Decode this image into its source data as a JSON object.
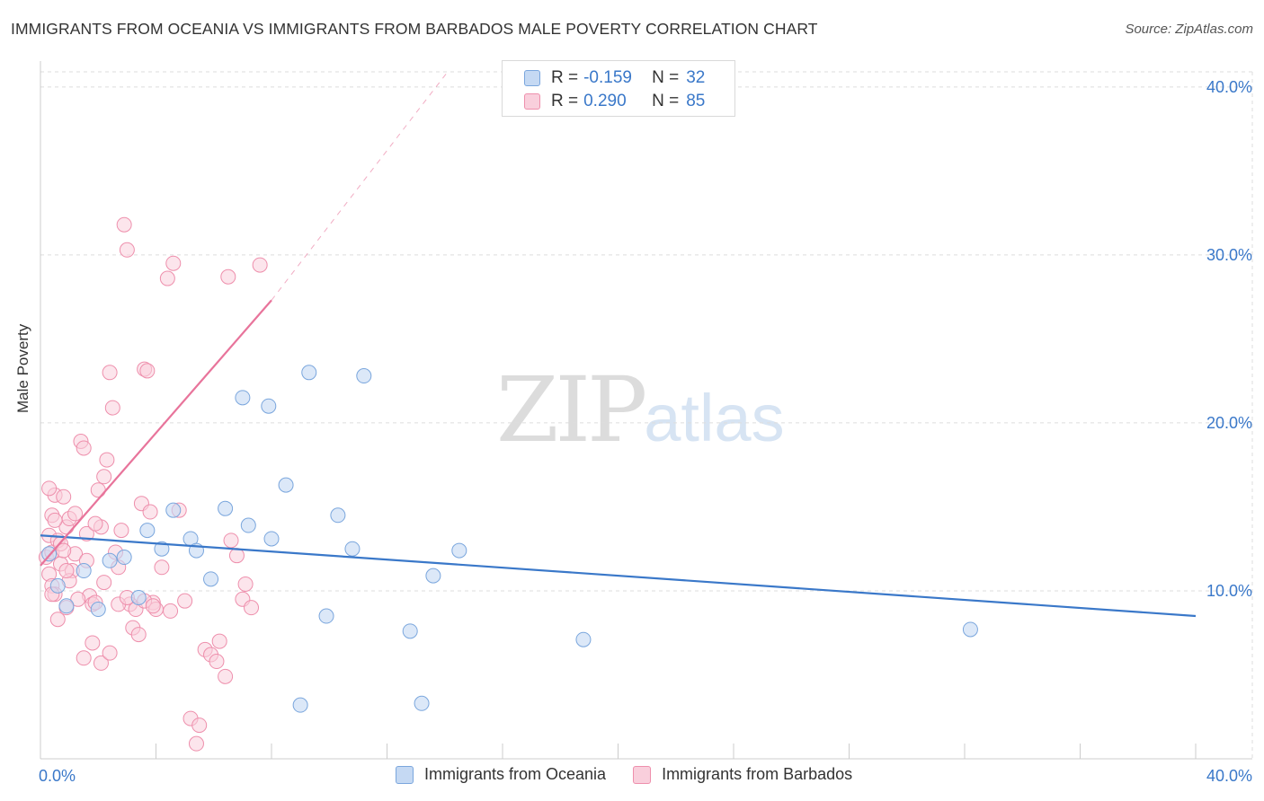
{
  "title": "IMMIGRANTS FROM OCEANIA VS IMMIGRANTS FROM BARBADOS MALE POVERTY CORRELATION CHART",
  "source": "Source: ZipAtlas.com",
  "watermark": {
    "part1": "ZIP",
    "part2": "atlas"
  },
  "legend": {
    "oceania": {
      "r_label": "R =",
      "r_value": "-0.159",
      "n_label": "N =",
      "n_value": "32"
    },
    "barbados": {
      "r_label": "R =",
      "r_value": "0.290",
      "n_label": "N =",
      "n_value": "85"
    }
  },
  "bottom_legend": {
    "oceania": "Immigrants from Oceania",
    "barbados": "Immigrants from Barbados"
  },
  "colors": {
    "oceania_fill": "#c5d9f3",
    "oceania_stroke": "#7aa6dd",
    "oceania_line": "#3a78c9",
    "barbados_fill": "#f9cfdc",
    "barbados_stroke": "#ee8fac",
    "barbados_line": "#e8749b",
    "axis_text": "#3a78c9",
    "grid": "#dddddd"
  },
  "chart_data": {
    "type": "scatter",
    "title": "IMMIGRANTS FROM OCEANIA VS IMMIGRANTS FROM BARBADOS MALE POVERTY CORRELATION CHART",
    "xlabel": "",
    "ylabel": "Male Poverty",
    "xlim": [
      0,
      40
    ],
    "ylim": [
      0,
      40.9
    ],
    "x_tick_labels": [
      "0.0%",
      "40.0%"
    ],
    "y_ticks": [
      10,
      20,
      30,
      40
    ],
    "y_tick_labels": [
      "10.0%",
      "20.0%",
      "30.0%",
      "40.0%"
    ],
    "series": [
      {
        "name": "Immigrants from Oceania",
        "color": "#7aa6dd",
        "points": [
          [
            0.3,
            12.2
          ],
          [
            0.6,
            10.3
          ],
          [
            1.5,
            11.2
          ],
          [
            2.0,
            8.9
          ],
          [
            2.4,
            11.8
          ],
          [
            2.9,
            12.0
          ],
          [
            3.4,
            9.6
          ],
          [
            3.7,
            13.6
          ],
          [
            4.2,
            12.5
          ],
          [
            4.6,
            14.8
          ],
          [
            5.2,
            13.1
          ],
          [
            5.4,
            12.4
          ],
          [
            5.9,
            10.7
          ],
          [
            6.4,
            14.9
          ],
          [
            7.0,
            21.5
          ],
          [
            7.2,
            13.9
          ],
          [
            7.9,
            21.0
          ],
          [
            8.0,
            13.1
          ],
          [
            8.5,
            16.3
          ],
          [
            9.0,
            3.2
          ],
          [
            9.3,
            23.0
          ],
          [
            9.9,
            8.5
          ],
          [
            10.3,
            14.5
          ],
          [
            10.8,
            12.5
          ],
          [
            11.2,
            22.8
          ],
          [
            12.8,
            7.6
          ],
          [
            13.2,
            3.3
          ],
          [
            13.6,
            10.9
          ],
          [
            14.5,
            12.4
          ],
          [
            18.8,
            7.1
          ],
          [
            32.2,
            7.7
          ],
          [
            0.9,
            9.1
          ]
        ],
        "trend": {
          "x": [
            0,
            40
          ],
          "y": [
            13.3,
            8.5
          ]
        }
      },
      {
        "name": "Immigrants from Barbados",
        "color": "#ee8fac",
        "points": [
          [
            0.2,
            12.0
          ],
          [
            0.3,
            13.3
          ],
          [
            0.3,
            11.0
          ],
          [
            0.4,
            12.3
          ],
          [
            0.4,
            10.3
          ],
          [
            0.4,
            14.5
          ],
          [
            0.5,
            15.7
          ],
          [
            0.5,
            9.8
          ],
          [
            0.6,
            13.0
          ],
          [
            0.7,
            11.6
          ],
          [
            0.7,
            12.8
          ],
          [
            0.8,
            15.6
          ],
          [
            0.9,
            13.8
          ],
          [
            0.9,
            9.0
          ],
          [
            1.0,
            14.3
          ],
          [
            1.1,
            11.2
          ],
          [
            1.2,
            12.2
          ],
          [
            0.6,
            8.3
          ],
          [
            1.4,
            18.9
          ],
          [
            1.5,
            18.5
          ],
          [
            1.6,
            13.4
          ],
          [
            1.7,
            9.7
          ],
          [
            1.8,
            9.2
          ],
          [
            1.9,
            9.3
          ],
          [
            2.0,
            16.0
          ],
          [
            2.1,
            13.8
          ],
          [
            2.2,
            16.8
          ],
          [
            2.3,
            17.8
          ],
          [
            2.4,
            23.0
          ],
          [
            2.5,
            20.9
          ],
          [
            2.6,
            12.3
          ],
          [
            2.7,
            11.4
          ],
          [
            2.8,
            13.6
          ],
          [
            2.9,
            31.8
          ],
          [
            3.0,
            30.3
          ],
          [
            3.1,
            9.2
          ],
          [
            3.2,
            7.8
          ],
          [
            3.4,
            7.4
          ],
          [
            3.5,
            15.2
          ],
          [
            3.6,
            23.2
          ],
          [
            3.7,
            23.1
          ],
          [
            3.8,
            14.7
          ],
          [
            3.9,
            9.3
          ],
          [
            4.0,
            8.9
          ],
          [
            4.2,
            11.4
          ],
          [
            4.4,
            28.6
          ],
          [
            4.6,
            29.5
          ],
          [
            4.8,
            14.8
          ],
          [
            5.0,
            9.4
          ],
          [
            5.2,
            2.4
          ],
          [
            5.4,
            0.9
          ],
          [
            5.5,
            2.0
          ],
          [
            5.7,
            6.5
          ],
          [
            5.9,
            6.2
          ],
          [
            6.1,
            5.8
          ],
          [
            6.2,
            7.0
          ],
          [
            6.4,
            4.9
          ],
          [
            6.5,
            28.7
          ],
          [
            6.6,
            13.0
          ],
          [
            6.8,
            12.1
          ],
          [
            7.0,
            9.5
          ],
          [
            7.1,
            10.4
          ],
          [
            7.3,
            9.0
          ],
          [
            7.6,
            29.4
          ],
          [
            0.3,
            16.1
          ],
          [
            0.5,
            14.2
          ],
          [
            0.8,
            12.4
          ],
          [
            1.0,
            10.6
          ],
          [
            1.3,
            9.5
          ],
          [
            1.6,
            11.8
          ],
          [
            1.9,
            14.0
          ],
          [
            2.2,
            10.5
          ],
          [
            0.4,
            9.8
          ],
          [
            0.9,
            11.2
          ],
          [
            1.2,
            14.6
          ],
          [
            1.5,
            6.0
          ],
          [
            1.8,
            6.9
          ],
          [
            2.1,
            5.7
          ],
          [
            2.4,
            6.3
          ],
          [
            2.7,
            9.2
          ],
          [
            3.0,
            9.6
          ],
          [
            3.3,
            8.9
          ],
          [
            3.6,
            9.4
          ],
          [
            3.9,
            9.1
          ],
          [
            4.5,
            8.8
          ]
        ],
        "trend": {
          "x": [
            0,
            8.0
          ],
          "y": [
            11.5,
            27.3
          ],
          "extension": {
            "x": [
              8.0,
              14.1
            ],
            "y": [
              27.3,
              40.9
            ]
          }
        }
      }
    ]
  }
}
